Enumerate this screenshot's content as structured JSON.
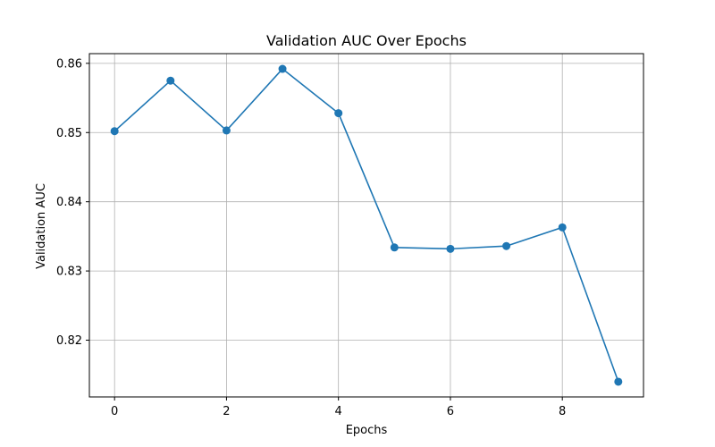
{
  "chart_data": {
    "type": "line",
    "title": "Validation AUC Over Epochs",
    "xlabel": "Epochs",
    "ylabel": "Validation AUC",
    "x": [
      0,
      1,
      2,
      3,
      4,
      5,
      6,
      7,
      8,
      9
    ],
    "series": [
      {
        "values": [
          0.8502,
          0.8575,
          0.8503,
          0.8592,
          0.8528,
          0.8334,
          0.8332,
          0.8336,
          0.8363,
          0.814
        ]
      }
    ],
    "xlim": [
      -0.45,
      9.45
    ],
    "ylim": [
      0.8118,
      0.8614
    ],
    "xticks": [
      0,
      2,
      4,
      6,
      8
    ],
    "yticks": [
      0.82,
      0.83,
      0.84,
      0.85,
      0.86
    ],
    "xtick_labels": [
      "0",
      "2",
      "4",
      "6",
      "8"
    ],
    "ytick_labels": [
      "0.82",
      "0.83",
      "0.84",
      "0.85",
      "0.86"
    ],
    "grid": true,
    "marker": "circle",
    "colors": {
      "series": "#1f77b4",
      "grid": "#b0b0b0",
      "axes": "#000000"
    }
  }
}
